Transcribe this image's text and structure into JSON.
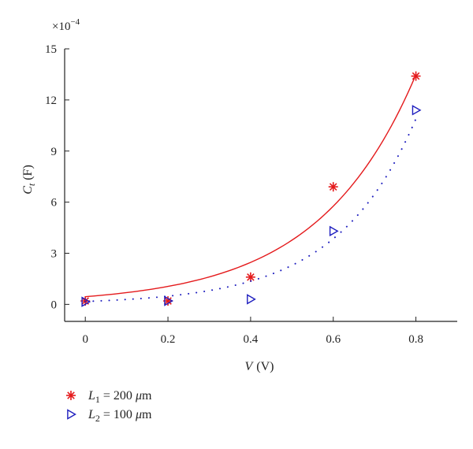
{
  "chart_data": {
    "type": "scatter",
    "xlabel": {
      "main": "V",
      "unit": "(V)"
    },
    "ylabel": {
      "main": "C",
      "sub": "t",
      "unit": "(F)"
    },
    "multiplier": {
      "prefix": "×10",
      "exponent": "−4"
    },
    "xlim": [
      -0.05,
      0.9
    ],
    "ylim": [
      -1,
      15
    ],
    "xticks": [
      0,
      0.2,
      0.4,
      0.6,
      0.8
    ],
    "xtick_labels": [
      "0",
      "0.2",
      "0.4",
      "0.6",
      "0.8"
    ],
    "yticks": [
      0,
      3,
      6,
      9,
      12,
      15
    ],
    "ytick_labels": [
      "0",
      "3",
      "6",
      "9",
      "12",
      "15"
    ],
    "grid": false,
    "legend_position": "bottom-left, outside plot",
    "series": [
      {
        "name": "L1 = 200 μm",
        "legend": {
          "sym": "L",
          "sub": "1",
          "rest": " = 200 ",
          "mu": "μ",
          "unit": "m"
        },
        "marker": "asterisk",
        "color": "#e41a1c",
        "fit_style": "solid",
        "x": [
          0,
          0.2,
          0.4,
          0.6,
          0.8
        ],
        "y": [
          0.2,
          0.2,
          1.6,
          6.9,
          13.4
        ],
        "fit": {
          "a": 0.45,
          "b": 4.25
        }
      },
      {
        "name": "L2 = 100 μm",
        "legend": {
          "sym": "L",
          "sub": "2",
          "rest": " = 100 ",
          "mu": "μ",
          "unit": "m"
        },
        "marker": "triangle-right",
        "color": "#1f1fbf",
        "fit_style": "dotted",
        "x": [
          0,
          0.2,
          0.4,
          0.6,
          0.8
        ],
        "y": [
          0.15,
          0.2,
          0.3,
          4.3,
          11.4
        ],
        "fit": {
          "a": 0.17,
          "b": 5.2
        }
      }
    ]
  }
}
